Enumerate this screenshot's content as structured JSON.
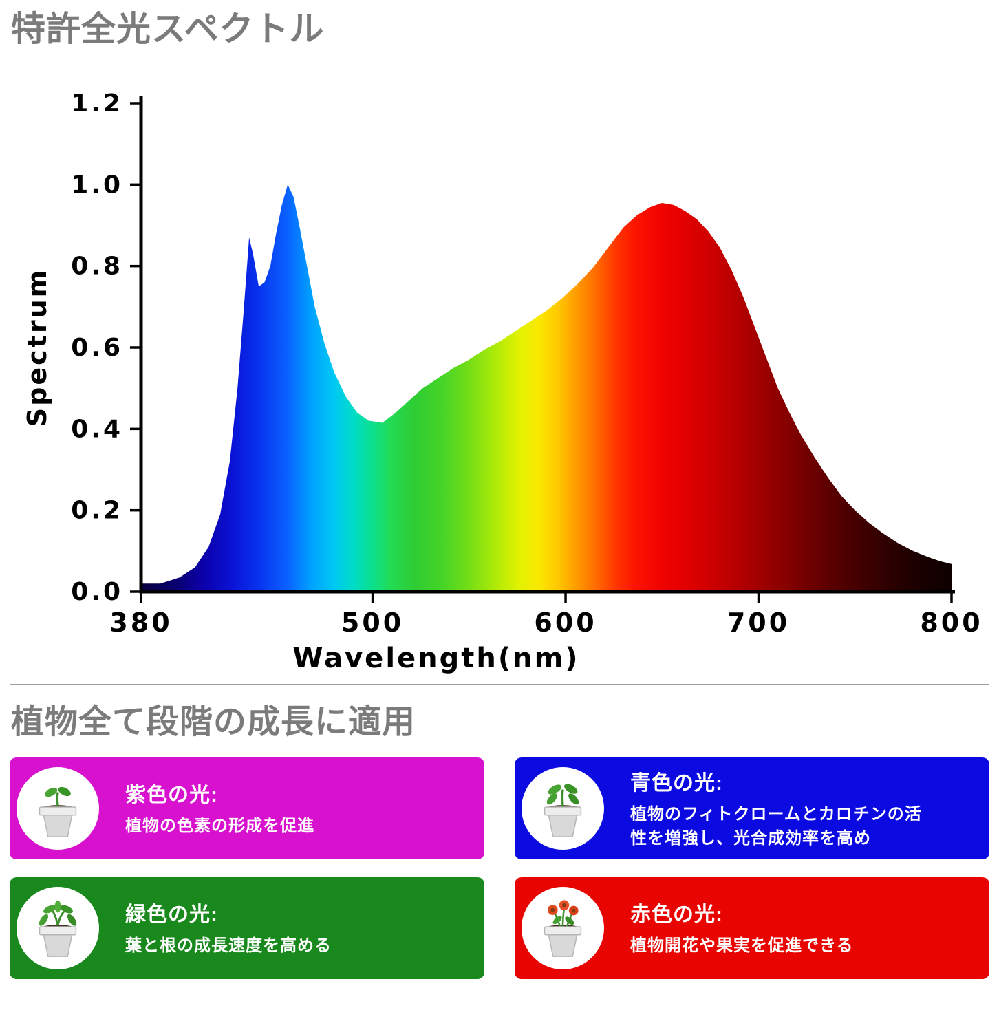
{
  "header": {
    "title": "特許全光スペクトル"
  },
  "section": {
    "title": "植物全て段階の成長に適用"
  },
  "chart_data": {
    "type": "area",
    "title": "",
    "xlabel": "Wavelength(nm)",
    "ylabel": "Spectrum",
    "xlim": [
      380,
      800
    ],
    "ylim": [
      0,
      1.2
    ],
    "grid": false,
    "legend": "none",
    "xticks": [
      {
        "value": 380,
        "label": "380"
      },
      {
        "value": 500,
        "label": "500"
      },
      {
        "value": 600,
        "label": "600"
      },
      {
        "value": 700,
        "label": "700"
      },
      {
        "value": 800,
        "label": "800"
      }
    ],
    "yticks": [
      {
        "value": 0.0,
        "label": "0.0"
      },
      {
        "value": 0.2,
        "label": "0.2"
      },
      {
        "value": 0.4,
        "label": "0.4"
      },
      {
        "value": 0.6,
        "label": "0.6"
      },
      {
        "value": 0.8,
        "label": "0.8"
      },
      {
        "value": 1.0,
        "label": "1.0"
      },
      {
        "value": 1.2,
        "label": "1.2"
      }
    ],
    "points": [
      [
        380,
        0.02
      ],
      [
        390,
        0.02
      ],
      [
        400,
        0.035
      ],
      [
        408,
        0.06
      ],
      [
        415,
        0.11
      ],
      [
        421,
        0.19
      ],
      [
        426,
        0.32
      ],
      [
        430,
        0.5
      ],
      [
        433,
        0.68
      ],
      [
        436,
        0.87
      ],
      [
        438,
        0.83
      ],
      [
        441,
        0.75
      ],
      [
        444,
        0.76
      ],
      [
        447,
        0.8
      ],
      [
        450,
        0.88
      ],
      [
        453,
        0.95
      ],
      [
        456,
        1.0
      ],
      [
        459,
        0.97
      ],
      [
        462,
        0.9
      ],
      [
        466,
        0.8
      ],
      [
        470,
        0.7
      ],
      [
        475,
        0.61
      ],
      [
        480,
        0.54
      ],
      [
        486,
        0.48
      ],
      [
        492,
        0.44
      ],
      [
        498,
        0.42
      ],
      [
        505,
        0.415
      ],
      [
        512,
        0.44
      ],
      [
        519,
        0.47
      ],
      [
        526,
        0.5
      ],
      [
        534,
        0.525
      ],
      [
        542,
        0.55
      ],
      [
        550,
        0.57
      ],
      [
        558,
        0.595
      ],
      [
        566,
        0.615
      ],
      [
        574,
        0.64
      ],
      [
        582,
        0.665
      ],
      [
        590,
        0.69
      ],
      [
        598,
        0.72
      ],
      [
        606,
        0.755
      ],
      [
        614,
        0.795
      ],
      [
        622,
        0.845
      ],
      [
        630,
        0.895
      ],
      [
        637,
        0.925
      ],
      [
        644,
        0.945
      ],
      [
        650,
        0.955
      ],
      [
        656,
        0.95
      ],
      [
        662,
        0.935
      ],
      [
        668,
        0.915
      ],
      [
        674,
        0.885
      ],
      [
        680,
        0.845
      ],
      [
        686,
        0.79
      ],
      [
        692,
        0.725
      ],
      [
        698,
        0.65
      ],
      [
        704,
        0.575
      ],
      [
        710,
        0.5
      ],
      [
        716,
        0.44
      ],
      [
        722,
        0.385
      ],
      [
        729,
        0.33
      ],
      [
        736,
        0.28
      ],
      [
        743,
        0.235
      ],
      [
        750,
        0.2
      ],
      [
        757,
        0.17
      ],
      [
        764,
        0.145
      ],
      [
        772,
        0.12
      ],
      [
        780,
        0.1
      ],
      [
        788,
        0.085
      ],
      [
        794,
        0.075
      ],
      [
        800,
        0.068
      ]
    ],
    "gradient_stops": [
      [
        380,
        "#07003b"
      ],
      [
        398,
        "#0a0070"
      ],
      [
        412,
        "#0c00aa"
      ],
      [
        428,
        "#0a14d8"
      ],
      [
        442,
        "#0836f0"
      ],
      [
        456,
        "#0a62ff"
      ],
      [
        468,
        "#00a0ff"
      ],
      [
        480,
        "#00c8f4"
      ],
      [
        490,
        "#00dcc8"
      ],
      [
        500,
        "#0ce08c"
      ],
      [
        510,
        "#24da52"
      ],
      [
        522,
        "#2ecc32"
      ],
      [
        536,
        "#46d428"
      ],
      [
        550,
        "#74de16"
      ],
      [
        564,
        "#b0ea08"
      ],
      [
        576,
        "#e2f200"
      ],
      [
        586,
        "#fae800"
      ],
      [
        596,
        "#ffc800"
      ],
      [
        606,
        "#ff9a00"
      ],
      [
        616,
        "#ff6a00"
      ],
      [
        626,
        "#ff3600"
      ],
      [
        636,
        "#fc1400"
      ],
      [
        648,
        "#f20400"
      ],
      [
        660,
        "#e40000"
      ],
      [
        674,
        "#d00000"
      ],
      [
        690,
        "#b40000"
      ],
      [
        706,
        "#960000"
      ],
      [
        722,
        "#780000"
      ],
      [
        738,
        "#5a0000"
      ],
      [
        754,
        "#400000"
      ],
      [
        770,
        "#2a0000"
      ],
      [
        786,
        "#170000"
      ],
      [
        800,
        "#0e0000"
      ]
    ]
  },
  "cards": [
    {
      "name": "purple-light",
      "color": "#d711cd",
      "title": "紫色の光:",
      "description": "植物の色素の形成を促進"
    },
    {
      "name": "blue-light",
      "color": "#0b0ae0",
      "title": "青色の光:",
      "description": "植物のフィトクロームとカロチンの活性を増強し、光合成効率を高め"
    },
    {
      "name": "green-light",
      "color": "#1a891d",
      "title": "緑色の光:",
      "description": "葉と根の成長速度を高める"
    },
    {
      "name": "red-light",
      "color": "#e80400",
      "title": "赤色の光:",
      "description": "植物開花や果実を促進できる"
    }
  ]
}
